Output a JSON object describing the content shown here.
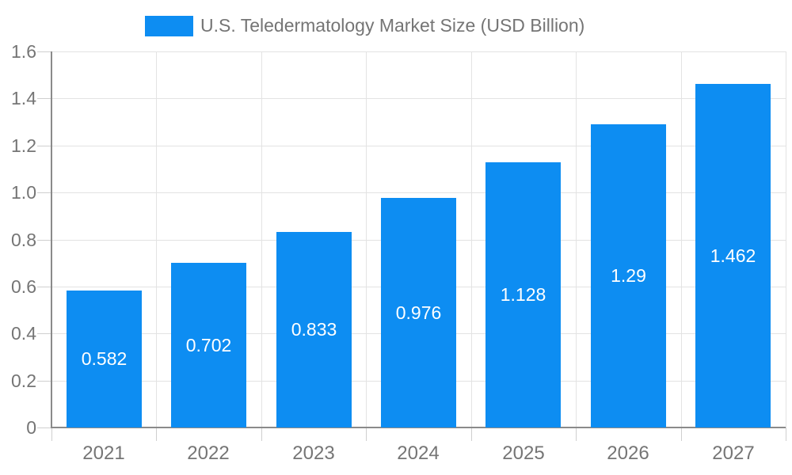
{
  "legend": {
    "label": "U.S. Teledermatology Market Size (USD Billion)",
    "swatch_color": "#0d8df2"
  },
  "chart_data": {
    "type": "bar",
    "title": "U.S. Teledermatology Market Size (USD Billion)",
    "categories": [
      "2021",
      "2022",
      "2023",
      "2024",
      "2025",
      "2026",
      "2027"
    ],
    "values": [
      0.582,
      0.702,
      0.833,
      0.976,
      1.128,
      1.29,
      1.462
    ],
    "value_labels": [
      "0.582",
      "0.702",
      "0.833",
      "0.976",
      "1.128",
      "1.29",
      "1.462"
    ],
    "xlabel": "",
    "ylabel": "",
    "ylim": [
      0,
      1.6
    ],
    "ytick_step": 0.2,
    "ytick_labels": [
      "0",
      "0.2",
      "0.4",
      "0.6",
      "0.8",
      "1.0",
      "1.2",
      "1.4",
      "1.6"
    ],
    "grid": true,
    "legend_position": "top",
    "bar_color": "#0d8df2",
    "value_label_color": "#ffffff",
    "axis_text_color": "#757575"
  }
}
